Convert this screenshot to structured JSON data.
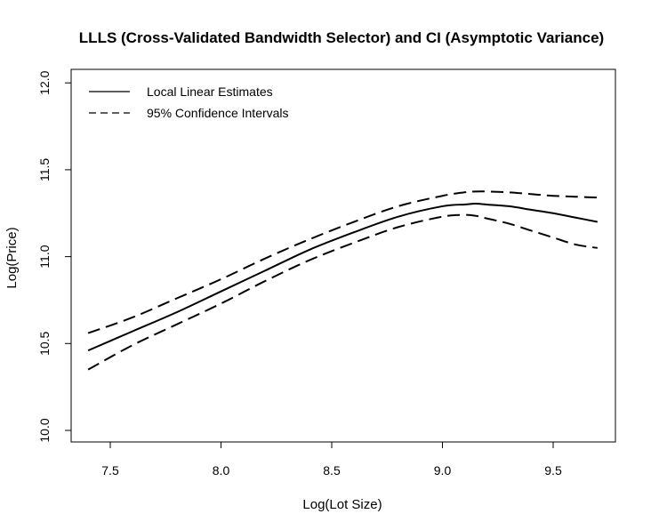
{
  "chart_data": {
    "type": "line",
    "title": "LLLS (Cross-Validated Bandwidth Selector) and CI (Asymptotic Variance)",
    "xlabel": "Log(Lot Size)",
    "ylabel": "Log(Price)",
    "xlim": [
      7.4,
      9.7
    ],
    "ylim": [
      10.0,
      12.0
    ],
    "x_ticks": [
      "7.5",
      "8.0",
      "8.5",
      "9.0",
      "9.5"
    ],
    "y_ticks": [
      "10.0",
      "10.5",
      "11.0",
      "11.5",
      "12.0"
    ],
    "grid": false,
    "legend_position": "top-left",
    "x": [
      7.4,
      7.6,
      7.8,
      8.0,
      8.2,
      8.4,
      8.6,
      8.8,
      9.0,
      9.1,
      9.15,
      9.2,
      9.3,
      9.4,
      9.5,
      9.6,
      9.7
    ],
    "series": [
      {
        "name": "Local Linear Estimates",
        "style": "solid",
        "values": [
          10.46,
          10.57,
          10.68,
          10.8,
          10.92,
          11.04,
          11.14,
          11.23,
          11.29,
          11.3,
          11.305,
          11.3,
          11.29,
          11.27,
          11.25,
          11.225,
          11.2
        ]
      },
      {
        "name": "95% Confidence Intervals",
        "style": "dashed",
        "values": [
          10.56,
          10.65,
          10.76,
          10.87,
          10.99,
          11.1,
          11.2,
          11.29,
          11.35,
          11.37,
          11.375,
          11.375,
          11.37,
          11.36,
          11.35,
          11.345,
          11.34
        ]
      },
      {
        "name": "95% Confidence Intervals",
        "style": "dashed",
        "values": [
          10.35,
          10.49,
          10.61,
          10.73,
          10.86,
          10.98,
          11.08,
          11.17,
          11.23,
          11.24,
          11.235,
          11.22,
          11.19,
          11.15,
          11.11,
          11.07,
          11.05
        ]
      }
    ],
    "legend": [
      {
        "label": "Local Linear Estimates",
        "style": "solid"
      },
      {
        "label": "95% Confidence Intervals",
        "style": "dashed"
      }
    ]
  }
}
